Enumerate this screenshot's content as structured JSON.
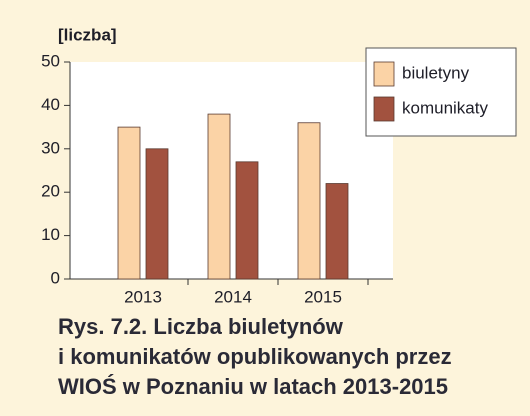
{
  "chart_data": {
    "type": "bar",
    "title": [
      "Rys. 7.2. Liczba biuletynów",
      "i komunikatów opublikowanych przez",
      "WIOŚ w Poznaniu w latach 2013-2015"
    ],
    "y_label": "[liczba]",
    "categories": [
      "2013",
      "2014",
      "2015"
    ],
    "series": [
      {
        "name": "biuletyny",
        "color": "#fbd3a6",
        "values": [
          35,
          38,
          36
        ]
      },
      {
        "name": "komunikaty",
        "color": "#a2523f",
        "values": [
          30,
          27,
          22
        ]
      }
    ],
    "ylim": [
      0,
      50
    ],
    "yticks": [
      0,
      10,
      20,
      30,
      40,
      50
    ],
    "legend": "upper right"
  }
}
